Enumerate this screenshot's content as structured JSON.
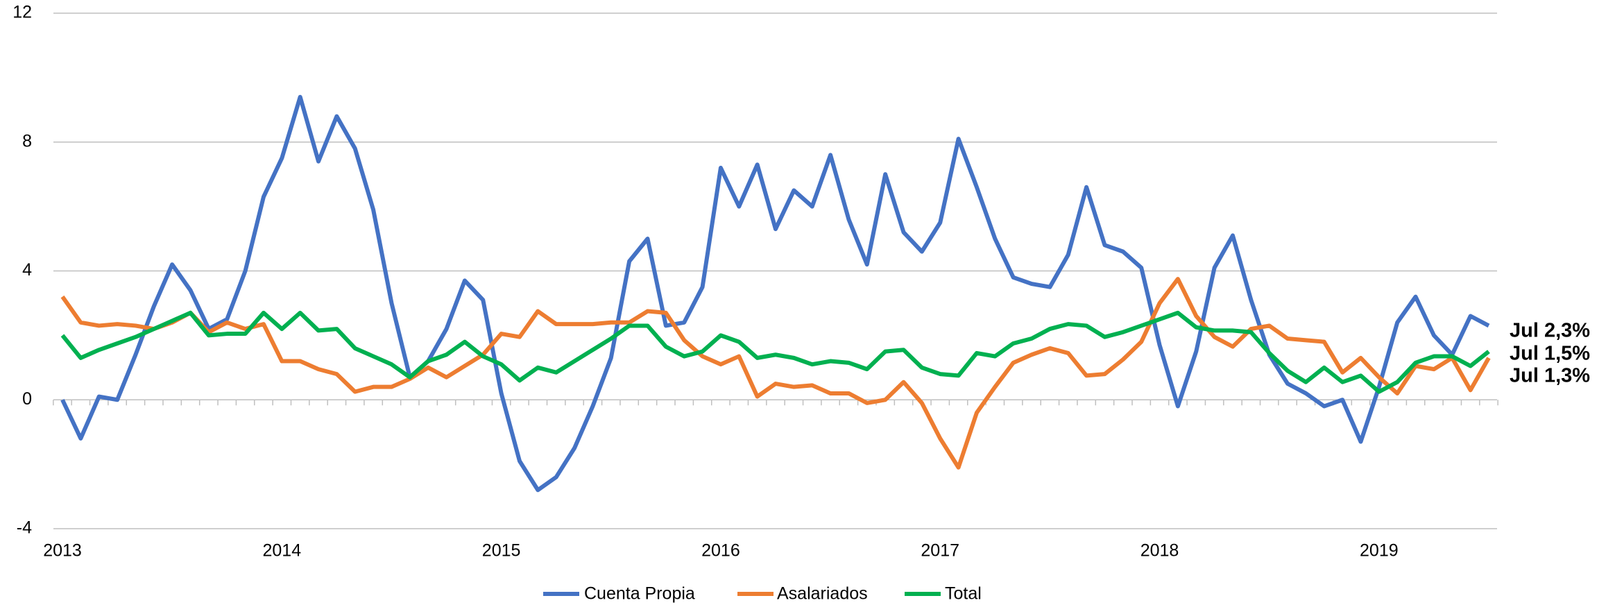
{
  "chart_data": {
    "type": "line",
    "categories": [
      "2013",
      null,
      null,
      null,
      null,
      null,
      null,
      null,
      null,
      null,
      null,
      null,
      "2014",
      null,
      null,
      null,
      null,
      null,
      null,
      null,
      null,
      null,
      null,
      null,
      "2015",
      null,
      null,
      null,
      null,
      null,
      null,
      null,
      null,
      null,
      null,
      null,
      "2016",
      null,
      null,
      null,
      null,
      null,
      null,
      null,
      null,
      null,
      null,
      null,
      "2017",
      null,
      null,
      null,
      null,
      null,
      null,
      null,
      null,
      null,
      null,
      null,
      "2018",
      null,
      null,
      null,
      null,
      null,
      null,
      null,
      null,
      null,
      null,
      null,
      "2019",
      null,
      null,
      null,
      null,
      null,
      null
    ],
    "ylim": [
      -4,
      12
    ],
    "yticks": [
      -4,
      0,
      4,
      8,
      12
    ],
    "grid": true,
    "series": [
      {
        "name": "Cuenta Propia",
        "color": "#4472c4",
        "end_label": "Jul 2,3%",
        "values": [
          0,
          -1.2,
          0.1,
          0,
          1.4,
          2.9,
          4.2,
          3.4,
          2.2,
          2.5,
          4.0,
          6.3,
          7.5,
          9.4,
          7.4,
          8.8,
          7.8,
          5.9,
          3.0,
          0.7,
          1.2,
          2.2,
          3.7,
          3.1,
          0.2,
          -1.9,
          -2.8,
          -2.4,
          -1.5,
          -0.2,
          1.3,
          4.3,
          5.0,
          2.3,
          2.4,
          3.5,
          7.2,
          6.0,
          7.3,
          5.3,
          6.5,
          6.0,
          7.6,
          5.6,
          4.2,
          7.0,
          5.2,
          4.6,
          5.5,
          8.1,
          6.6,
          5.0,
          3.8,
          3.6,
          3.5,
          4.5,
          6.6,
          4.8,
          4.6,
          4.1,
          1.7,
          -0.2,
          1.5,
          4.1,
          5.1,
          3.1,
          1.4,
          0.5,
          0.2,
          -0.2,
          0,
          -1.3,
          0.4,
          2.4,
          3.2,
          2.0,
          1.4,
          2.6,
          2.3
        ]
      },
      {
        "name": "Asalariados",
        "color": "#ed7d31",
        "end_label": "Jul 1,3%",
        "values": [
          3.2,
          2.4,
          2.3,
          2.35,
          2.3,
          2.2,
          2.4,
          2.7,
          2.1,
          2.4,
          2.2,
          2.35,
          1.2,
          1.2,
          0.95,
          0.8,
          0.25,
          0.4,
          0.4,
          0.65,
          1.0,
          0.7,
          1.05,
          1.4,
          2.05,
          1.95,
          2.75,
          2.35,
          2.35,
          2.35,
          2.4,
          2.4,
          2.75,
          2.7,
          1.85,
          1.35,
          1.1,
          1.35,
          0.1,
          0.5,
          0.4,
          0.45,
          0.2,
          0.2,
          -0.1,
          0.0,
          0.55,
          -0.1,
          -1.2,
          -2.1,
          -0.4,
          0.4,
          1.15,
          1.4,
          1.6,
          1.45,
          0.75,
          0.8,
          1.25,
          1.8,
          3.0,
          3.75,
          2.6,
          1.95,
          1.65,
          2.2,
          2.3,
          1.9,
          1.85,
          1.8,
          0.85,
          1.3,
          0.7,
          0.2,
          1.05,
          0.95,
          1.3,
          0.3,
          1.3
        ]
      },
      {
        "name": "Total",
        "color": "#00b050",
        "end_label": "Jul 1,5%",
        "values": [
          2.0,
          1.3,
          1.55,
          1.75,
          1.95,
          2.2,
          2.45,
          2.7,
          2.0,
          2.05,
          2.05,
          2.7,
          2.2,
          2.7,
          2.15,
          2.2,
          1.6,
          1.35,
          1.1,
          0.7,
          1.2,
          1.4,
          1.8,
          1.35,
          1.1,
          0.6,
          1.0,
          0.85,
          1.2,
          1.55,
          1.9,
          2.3,
          2.3,
          1.65,
          1.35,
          1.5,
          2.0,
          1.8,
          1.3,
          1.4,
          1.3,
          1.1,
          1.2,
          1.15,
          0.95,
          1.5,
          1.55,
          1.0,
          0.8,
          0.75,
          1.45,
          1.35,
          1.75,
          1.9,
          2.2,
          2.35,
          2.3,
          1.95,
          2.1,
          2.3,
          2.5,
          2.7,
          2.25,
          2.15,
          2.15,
          2.1,
          1.45,
          0.9,
          0.55,
          1.0,
          0.55,
          0.75,
          0.25,
          0.55,
          1.15,
          1.35,
          1.35,
          1.05,
          1.5
        ]
      }
    ]
  }
}
